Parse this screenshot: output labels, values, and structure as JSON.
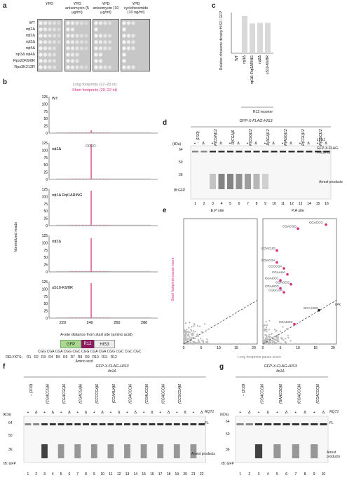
{
  "panel_labels": [
    "a",
    "b",
    "c",
    "d",
    "e",
    "f",
    "g"
  ],
  "panel_a": {
    "headers": [
      "YPD",
      "YPD anisomycin (5 µg/ml)",
      "YPD anisomycin (10 µg/ml)",
      "YPD cycloheximide (10 ng/ml)"
    ],
    "strains": [
      "WT",
      "rqt1Δ",
      "rqt2Δ",
      "rqt3Δ",
      "rqt4Δ",
      "rqt3Δ rqt4Δ",
      "Rps20K6/8R",
      "Rps3K212R"
    ]
  },
  "panel_b": {
    "legend_long": "Long footprints (27–29 nt)",
    "legend_short": "Short footprints (20–22 nt)",
    "ylabel": "Normalized reads",
    "xlabel": "A-site distance from start site (amino acid)",
    "xticks": [
      "220",
      "240",
      "260",
      "280"
    ],
    "tracks": [
      {
        "name": "WT",
        "yticks": [
          "125",
          "100",
          "75",
          "50",
          "25",
          "0"
        ]
      },
      {
        "name": "rqt1Δ",
        "yticks": [
          "125",
          "100",
          "75",
          "50",
          "25",
          "0"
        ]
      },
      {
        "name": "rqt1Δ Rqt1ΔRING",
        "yticks": [
          "125",
          "100",
          "75",
          "50",
          "25",
          "0"
        ]
      },
      {
        "name": "rqt2Δ",
        "yticks": [
          "125",
          "100",
          "75",
          "50",
          "25",
          "0"
        ]
      },
      {
        "name": "uS10-K6/8R",
        "yticks": [
          "125",
          "100",
          "75",
          "50",
          "25",
          "0"
        ]
      }
    ],
    "construct": {
      "gfp": "GFP",
      "r12": "R12",
      "his": "HIS3"
    },
    "sequence": "CGG CGA CGA CGG CGC CGG CGA CGA CGG CGC CGC CGC",
    "delykts": "DELYKTS–",
    "residues": [
      "R1",
      "R2",
      "R3",
      "R4",
      "R5",
      "R6",
      "R7",
      "R8",
      "R9",
      "R10",
      "R11",
      "R12"
    ],
    "residue_axis": "Amino acid"
  },
  "panel_c": {
    "ylabel": "Relative ribosome density HIS3 / GFP",
    "xlabels": [
      "WT",
      "rqt1Δ",
      "rqt1Δ::Rqt1ΔRING",
      "rqt2Δ",
      "uS10-K6/8R"
    ],
    "group_label": "R12 reporter"
  },
  "chart_data": {
    "type": "bar",
    "categories": [
      "WT",
      "rqt1Δ",
      "rqt1Δ::Rqt1ΔRING",
      "rqt2Δ",
      "uS10-K6/8R"
    ],
    "values": [
      0.0,
      0.55,
      0.44,
      0.45,
      0.45
    ],
    "ylabel": "Relative ribosome density HIS3 / GFP"
  },
  "panel_d": {
    "title": "GFP-X-FLAG-HIS3",
    "lanes_groups": [
      "− (1/10)",
      "R(CGN)12",
      "R(CGA)6",
      "R(CGG)12",
      "R(AGA)12",
      "R(AGG)12",
      "R(CGU)12",
      "R(CGC)12"
    ],
    "ltn1": "LTN1",
    "kda": "(kDa)",
    "markers": [
      "64",
      "50",
      "36"
    ],
    "fl_label": "GFP-X-FLAG-His3(FL)",
    "arrest_label": "Arrest products",
    "blot": "IB:GFP",
    "lane_numbers": [
      "1",
      "2",
      "3",
      "4",
      "5",
      "6",
      "7",
      "8",
      "9",
      "10",
      "11",
      "12",
      "13",
      "14",
      "15",
      "16"
    ]
  },
  "panel_e": {
    "ep_title": "E,P site",
    "pa_title": "P,A site",
    "ylabel": "Short footprints pause score",
    "xlabel": "Long footprints pause score",
    "yx": "y=x",
    "ticks": [
      "0",
      "5",
      "10",
      "15",
      "20"
    ],
    "codons": [
      "CGACCG",
      "CGACUG",
      "CGACGG",
      "CGACGA",
      "CCCCGA",
      "CGAAUA",
      "CGACCC",
      "CGAGCG",
      "CGAUCG",
      "CGGCGA",
      "GAA CGG",
      "CGACCC"
    ]
  },
  "panel_f": {
    "title": "GFP-X-FLAG-HIS3",
    "strain": "ltn1Δ",
    "groups": [
      "− (1/10)",
      "(CGACCG)6",
      "(CGACGG)6",
      "(CGACGA)6",
      "(CCCCGA)6",
      "(CGAAUA)6",
      "(CGACCC)6",
      "(CGAUCG)6",
      "(CGAGCG)6",
      "(CCGCGA)6"
    ],
    "rqt1": "RQT1",
    "kda": "(kDa)",
    "markers": [
      "64",
      "50",
      "36"
    ],
    "fl": "FL",
    "arrest": "Arrest products",
    "blot": "IB: GFP",
    "lane_numbers": [
      "1",
      "2",
      "3",
      "4",
      "5",
      "6",
      "7",
      "8",
      "9",
      "10",
      "11",
      "12",
      "13",
      "14",
      "15",
      "16",
      "17",
      "18",
      "19",
      "20",
      "21",
      "22"
    ]
  },
  "panel_g": {
    "title": "GFP-X-FLAG-HIS3",
    "strain": "ltn1Δ",
    "groups": [
      "− (1/10)",
      "(CGACCG)6",
      "(GAACGG)6",
      "(CGAGCG)6",
      "(CGACCC)6"
    ],
    "rqt1": "RQT1",
    "kda": "(kDa)",
    "markers": [
      "64",
      "50",
      "36"
    ],
    "fl": "FL",
    "arrest": "Arrest products",
    "blot": "IB: GFP",
    "lane_numbers": [
      "1",
      "2",
      "3",
      "4",
      "5",
      "6",
      "7",
      "8",
      "9",
      "10"
    ]
  }
}
